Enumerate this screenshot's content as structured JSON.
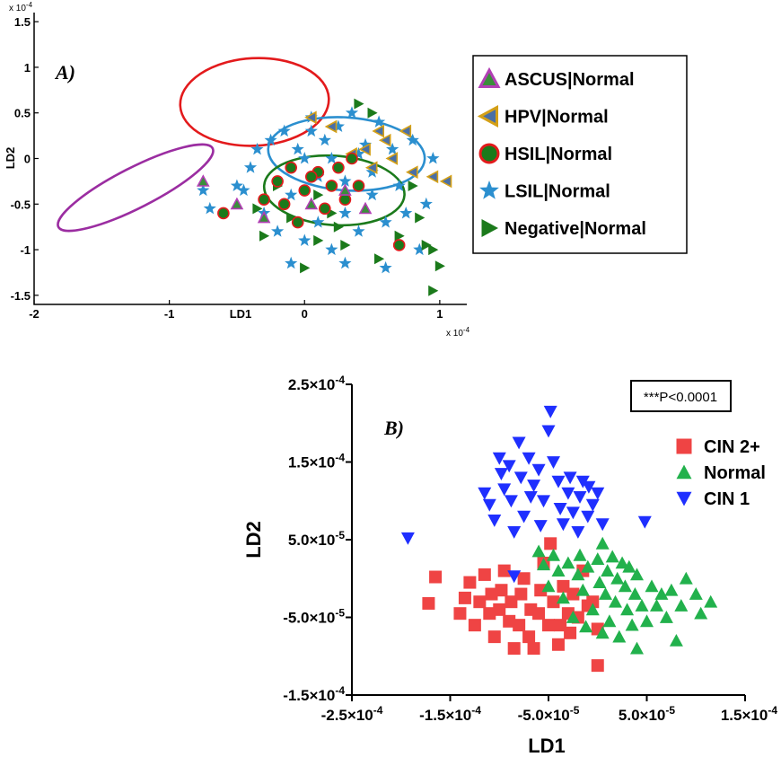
{
  "chart_data": [
    {
      "type": "scatter",
      "panel_label": "A)",
      "xlabel": "LD1",
      "ylabel": "LD2",
      "x_multiplier": "x 10",
      "x_multiplier_exp": "-4",
      "y_multiplier": "x 10",
      "y_multiplier_exp": "-4",
      "xlim": [
        -2,
        1.2
      ],
      "ylim": [
        -1.6,
        1.6
      ],
      "xticks": [
        "-2",
        "-1",
        "0",
        "1"
      ],
      "yticks": [
        "1.5",
        "1",
        "0.5",
        "0",
        "-0.5",
        "-1",
        "-1.5"
      ],
      "legend_position": "right",
      "ellipses": [
        {
          "series": "ASCUS|Normal",
          "cx": -1.25,
          "cy": -0.32,
          "rx": 0.64,
          "ry": 0.22,
          "angle_deg": -27,
          "color": "#9b2da1"
        },
        {
          "series": "HPV|Normal",
          "cx": -0.37,
          "cy": 0.62,
          "rx": 0.55,
          "ry": 0.48,
          "angle_deg": -3,
          "color": "#e31a1c"
        },
        {
          "series": "LSIL|Normal",
          "cx": 0.31,
          "cy": 0.05,
          "rx": 0.58,
          "ry": 0.4,
          "angle_deg": 4,
          "color": "#2b8fcf"
        },
        {
          "series": "Negative|Normal",
          "cx": 0.22,
          "cy": -0.35,
          "rx": 0.52,
          "ry": 0.38,
          "angle_deg": 4,
          "color": "#1b7a1b"
        }
      ],
      "series": [
        {
          "name": "ASCUS|Normal",
          "marker": "triangle-up",
          "color": "#3a8f3a",
          "edge": "#b23fb5",
          "points": [
            [
              -0.75,
              -0.25
            ],
            [
              -0.5,
              -0.5
            ],
            [
              -0.3,
              -0.65
            ],
            [
              0.05,
              -0.5
            ],
            [
              0.3,
              -0.35
            ],
            [
              0.45,
              -0.55
            ]
          ]
        },
        {
          "name": "HPV|Normal",
          "marker": "triangle-left",
          "color": "#4a6fa5",
          "edge": "#d4a017",
          "points": [
            [
              0.05,
              0.45
            ],
            [
              0.2,
              0.35
            ],
            [
              0.45,
              0.1
            ],
            [
              0.6,
              0.2
            ],
            [
              0.75,
              0.3
            ],
            [
              0.95,
              -0.2
            ],
            [
              1.05,
              -0.25
            ],
            [
              0.5,
              -0.1
            ],
            [
              0.35,
              0.05
            ],
            [
              0.8,
              -0.15
            ],
            [
              0.65,
              0.0
            ],
            [
              0.55,
              0.3
            ]
          ]
        },
        {
          "name": "HSIL|Normal",
          "marker": "circle",
          "color": "#1b7a1b",
          "edge": "#e31a1c",
          "points": [
            [
              -0.6,
              -0.6
            ],
            [
              -0.3,
              -0.45
            ],
            [
              -0.2,
              -0.25
            ],
            [
              -0.1,
              -0.1
            ],
            [
              0.0,
              -0.35
            ],
            [
              0.1,
              -0.15
            ],
            [
              0.15,
              -0.55
            ],
            [
              0.2,
              -0.3
            ],
            [
              0.3,
              -0.45
            ],
            [
              0.35,
              0.0
            ],
            [
              -0.15,
              -0.5
            ],
            [
              0.05,
              -0.2
            ],
            [
              0.25,
              -0.1
            ],
            [
              0.4,
              -0.3
            ],
            [
              0.7,
              -0.95
            ],
            [
              -0.05,
              -0.7
            ]
          ]
        },
        {
          "name": "LSIL|Normal",
          "marker": "star",
          "color": "#2b8fcf",
          "points": [
            [
              -0.7,
              -0.55
            ],
            [
              -0.5,
              -0.3
            ],
            [
              -0.4,
              -0.1
            ],
            [
              -0.35,
              0.1
            ],
            [
              -0.3,
              -0.6
            ],
            [
              -0.25,
              0.2
            ],
            [
              -0.2,
              -0.8
            ],
            [
              -0.15,
              0.3
            ],
            [
              -0.1,
              -0.4
            ],
            [
              -0.05,
              0.1
            ],
            [
              0.0,
              -0.9
            ],
            [
              0.05,
              0.45
            ],
            [
              0.1,
              -0.7
            ],
            [
              0.15,
              0.2
            ],
            [
              0.2,
              -1.0
            ],
            [
              0.25,
              0.35
            ],
            [
              0.3,
              -0.6
            ],
            [
              0.35,
              0.5
            ],
            [
              0.4,
              -0.8
            ],
            [
              0.45,
              0.15
            ],
            [
              0.5,
              -0.4
            ],
            [
              0.55,
              0.4
            ],
            [
              0.6,
              -0.7
            ],
            [
              0.65,
              0.1
            ],
            [
              0.7,
              -0.3
            ],
            [
              0.75,
              -0.6
            ],
            [
              0.8,
              0.2
            ],
            [
              0.85,
              -1.0
            ],
            [
              0.9,
              -0.5
            ],
            [
              0.95,
              0.0
            ],
            [
              -0.45,
              -0.35
            ],
            [
              0.0,
              0.0
            ],
            [
              0.1,
              -0.2
            ],
            [
              0.2,
              0.0
            ],
            [
              0.3,
              -0.25
            ],
            [
              0.4,
              0.05
            ],
            [
              0.5,
              -0.15
            ],
            [
              -0.1,
              -1.15
            ],
            [
              0.3,
              -1.15
            ],
            [
              0.6,
              -1.2
            ],
            [
              -0.75,
              -0.35
            ],
            [
              0.05,
              0.3
            ]
          ]
        },
        {
          "name": "Negative|Normal",
          "marker": "triangle-right",
          "color": "#1b7a1b",
          "points": [
            [
              -0.35,
              -0.55
            ],
            [
              -0.3,
              -0.85
            ],
            [
              -0.2,
              -0.3
            ],
            [
              -0.1,
              -0.65
            ],
            [
              0.0,
              -1.2
            ],
            [
              0.1,
              -0.9
            ],
            [
              0.2,
              -0.6
            ],
            [
              0.3,
              -0.95
            ],
            [
              0.4,
              0.6
            ],
            [
              0.5,
              0.5
            ],
            [
              0.55,
              -1.1
            ],
            [
              0.7,
              -0.85
            ],
            [
              0.8,
              -0.3
            ],
            [
              0.85,
              -0.65
            ],
            [
              0.9,
              -0.95
            ],
            [
              0.95,
              -1.0
            ],
            [
              1.0,
              -1.18
            ],
            [
              0.95,
              -1.45
            ],
            [
              0.1,
              -0.4
            ],
            [
              0.25,
              -0.75
            ]
          ]
        }
      ]
    },
    {
      "type": "scatter",
      "panel_label": "B)",
      "xlabel": "LD1",
      "ylabel": "LD2",
      "xlim": [
        -0.00025,
        0.00015
      ],
      "ylim": [
        -0.00015,
        0.00025
      ],
      "xticks": [
        {
          "m": "-2.5",
          "e": "-4"
        },
        {
          "m": "-1.5",
          "e": "-4"
        },
        {
          "m": "-5.0",
          "e": "-5"
        },
        {
          "m": "5.0",
          "e": "-5"
        },
        {
          "m": "1.5",
          "e": "-4"
        }
      ],
      "yticks": [
        {
          "m": "2.5",
          "e": "-4"
        },
        {
          "m": "1.5",
          "e": "-4"
        },
        {
          "m": "5.0",
          "e": "-5"
        },
        {
          "m": "-5.0",
          "e": "-5"
        },
        {
          "m": "-1.5",
          "e": "-4"
        }
      ],
      "tick_times": "×10",
      "annotation": "***P<0.0001",
      "legend_position": "right",
      "series": [
        {
          "name": "CIN 2+",
          "marker": "square",
          "color": "#ef4444",
          "points": [
            [
              -0.000172,
              -3.2e-05
            ],
            [
              -0.000165,
              2e-06
            ],
            [
              -0.00014,
              -4.5e-05
            ],
            [
              -0.000135,
              -2.5e-05
            ],
            [
              -0.00013,
              -5e-06
            ],
            [
              -0.000125,
              -6e-05
            ],
            [
              -0.00012,
              -3e-05
            ],
            [
              -0.000115,
              5e-06
            ],
            [
              -0.00011,
              -4.5e-05
            ],
            [
              -0.000108,
              -2e-05
            ],
            [
              -0.000105,
              -7.5e-05
            ],
            [
              -0.0001,
              -4e-05
            ],
            [
              -9.8e-05,
              -1.5e-05
            ],
            [
              -9.5e-05,
              1e-05
            ],
            [
              -9e-05,
              -5.5e-05
            ],
            [
              -8.8e-05,
              -3e-05
            ],
            [
              -8.5e-05,
              -9e-05
            ],
            [
              -8e-05,
              -6e-05
            ],
            [
              -7.8e-05,
              -2e-05
            ],
            [
              -7.5e-05,
              0.0
            ],
            [
              -7e-05,
              -7.5e-05
            ],
            [
              -6.8e-05,
              -4e-05
            ],
            [
              -6.5e-05,
              -9e-05
            ],
            [
              -6e-05,
              -4.5e-05
            ],
            [
              -5.8e-05,
              -1.5e-05
            ],
            [
              -5.5e-05,
              2e-05
            ],
            [
              -5e-05,
              -6e-05
            ],
            [
              -4.8e-05,
              4.5e-05
            ],
            [
              -4.5e-05,
              -3e-05
            ],
            [
              -4e-05,
              -8.5e-05
            ],
            [
              -3.8e-05,
              -6e-05
            ],
            [
              -3.5e-05,
              -1e-05
            ],
            [
              -3e-05,
              -4.5e-05
            ],
            [
              -2.8e-05,
              -7e-05
            ],
            [
              -2.5e-05,
              -2e-05
            ],
            [
              -2e-05,
              -5e-05
            ],
            [
              -1.5e-05,
              1e-05
            ],
            [
              -1e-05,
              -3.5e-05
            ],
            [
              -5e-06,
              -3e-05
            ],
            [
              0.0,
              -6.5e-05
            ],
            [
              0.0,
              -0.000112
            ]
          ]
        },
        {
          "name": "Normal",
          "marker": "triangle-up",
          "color": "#22b14c",
          "points": [
            [
              -6e-05,
              3.5e-05
            ],
            [
              -5.5e-05,
              1.8e-05
            ],
            [
              -5e-05,
              -1e-05
            ],
            [
              -4.5e-05,
              3e-05
            ],
            [
              -4e-05,
              1e-05
            ],
            [
              -3.5e-05,
              -2.5e-05
            ],
            [
              -3e-05,
              2e-05
            ],
            [
              -2.5e-05,
              -5e-05
            ],
            [
              -2e-05,
              5e-06
            ],
            [
              -1.8e-05,
              3e-05
            ],
            [
              -1.5e-05,
              -1.5e-05
            ],
            [
              -1e-05,
              1.5e-05
            ],
            [
              -5e-06,
              -4e-05
            ],
            [
              0.0,
              2.5e-05
            ],
            [
              2e-06,
              -5e-06
            ],
            [
              5e-06,
              4.5e-05
            ],
            [
              8e-06,
              -2e-05
            ],
            [
              1e-05,
              1e-05
            ],
            [
              1.2e-05,
              -5.5e-05
            ],
            [
              1.5e-05,
              2.8e-05
            ],
            [
              1.8e-05,
              -3e-05
            ],
            [
              2e-05,
              0.0
            ],
            [
              2.2e-05,
              -7.5e-05
            ],
            [
              2.5e-05,
              2e-05
            ],
            [
              2.8e-05,
              -1e-05
            ],
            [
              3e-05,
              -4e-05
            ],
            [
              3.2e-05,
              1.5e-05
            ],
            [
              3.5e-05,
              -6e-05
            ],
            [
              3.8e-05,
              -2e-05
            ],
            [
              4e-05,
              5e-06
            ],
            [
              4.5e-05,
              -3.5e-05
            ],
            [
              5e-05,
              -5.5e-05
            ],
            [
              5.5e-05,
              -1e-05
            ],
            [
              6e-05,
              -3.5e-05
            ],
            [
              6.5e-05,
              -2e-05
            ],
            [
              7e-05,
              -5e-05
            ],
            [
              7.5e-05,
              -1.5e-05
            ],
            [
              8e-05,
              -8e-05
            ],
            [
              8.5e-05,
              -3.5e-05
            ],
            [
              9e-05,
              0.0
            ],
            [
              0.0001,
              -2e-05
            ],
            [
              0.000105,
              -4.5e-05
            ],
            [
              0.000115,
              -3e-05
            ],
            [
              5e-06,
              -7e-05
            ],
            [
              -1.2e-05,
              -6.2e-05
            ],
            [
              4e-05,
              -9e-05
            ]
          ]
        },
        {
          "name": "CIN 1",
          "marker": "triangle-down",
          "color": "#1f2fff",
          "points": [
            [
              -0.000193,
              5.2e-05
            ],
            [
              -0.000115,
              0.00011
            ],
            [
              -0.00011,
              9.5e-05
            ],
            [
              -0.000105,
              7.5e-05
            ],
            [
              -0.0001,
              0.000155
            ],
            [
              -9.8e-05,
              0.000135
            ],
            [
              -9.5e-05,
              0.000115
            ],
            [
              -9e-05,
              0.000145
            ],
            [
              -8.8e-05,
              0.0001
            ],
            [
              -8.5e-05,
              6e-05
            ],
            [
              -8e-05,
              0.000175
            ],
            [
              -7.8e-05,
              0.00013
            ],
            [
              -7.5e-05,
              8e-05
            ],
            [
              -7e-05,
              0.000155
            ],
            [
              -6.8e-05,
              0.000105
            ],
            [
              -6.5e-05,
              0.00012
            ],
            [
              -6e-05,
              0.00014
            ],
            [
              -5.8e-05,
              6.8e-05
            ],
            [
              -5.5e-05,
              0.0001
            ],
            [
              -5e-05,
              0.00019
            ],
            [
              -4.8e-05,
              0.000215
            ],
            [
              -4.5e-05,
              0.00015
            ],
            [
              -4e-05,
              0.000125
            ],
            [
              -3.8e-05,
              9e-05
            ],
            [
              -3.5e-05,
              7e-05
            ],
            [
              -3e-05,
              0.00011
            ],
            [
              -2.8e-05,
              0.00013
            ],
            [
              -2.5e-05,
              8.5e-05
            ],
            [
              -2e-05,
              6e-05
            ],
            [
              -1.8e-05,
              0.000105
            ],
            [
              -1.5e-05,
              0.000125
            ],
            [
              -1e-05,
              8e-05
            ],
            [
              -5e-06,
              9.5e-05
            ],
            [
              0.0,
              0.00011
            ],
            [
              5e-06,
              7e-05
            ],
            [
              -9e-06,
              0.000118
            ],
            [
              4.8e-05,
              7.3e-05
            ],
            [
              -8.5e-05,
              3e-06
            ]
          ]
        }
      ]
    }
  ]
}
